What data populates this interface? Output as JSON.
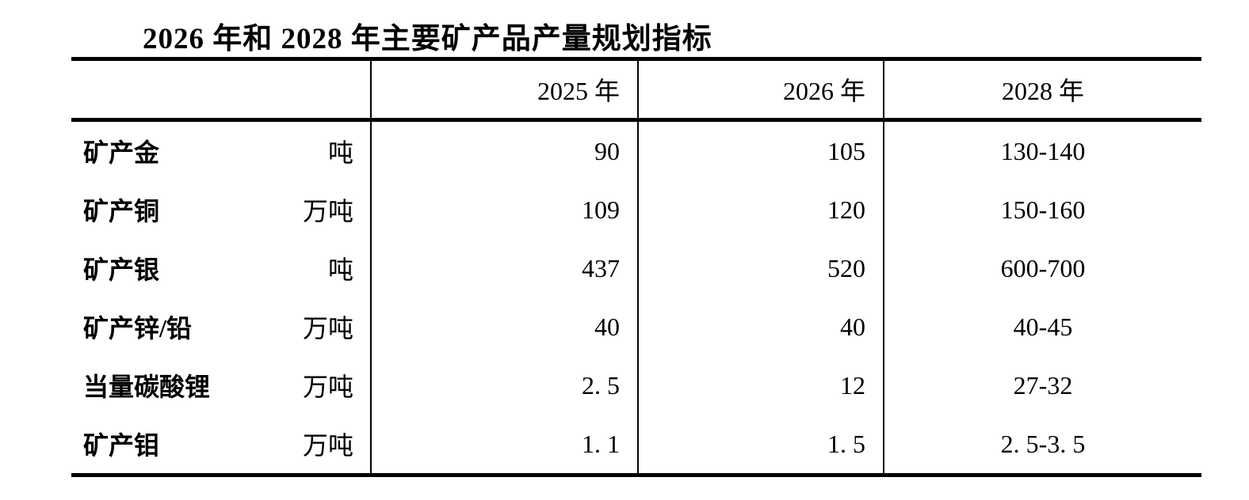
{
  "page": {
    "title": "2026 年和 2028 年主要矿产品产量规划指标"
  },
  "colors": {
    "text": "#000000",
    "background": "#ffffff",
    "border": "#000000"
  },
  "table": {
    "columns": {
      "item": "",
      "y2025": "2025 年",
      "y2026": "2026 年",
      "y2028": "2028 年"
    },
    "rows": [
      {
        "name": "矿产金",
        "unit": "吨",
        "y2025": "90",
        "y2026": "105",
        "y2028": "130-140"
      },
      {
        "name": "矿产铜",
        "unit": "万吨",
        "y2025": "109",
        "y2026": "120",
        "y2028": "150-160"
      },
      {
        "name": "矿产银",
        "unit": "吨",
        "y2025": "437",
        "y2026": "520",
        "y2028": "600-700"
      },
      {
        "name": "矿产锌/铅",
        "unit": "万吨",
        "y2025": "40",
        "y2026": "40",
        "y2028": "40-45"
      },
      {
        "name": "当量碳酸锂",
        "unit": "万吨",
        "y2025": "2. 5",
        "y2026": "12",
        "y2028": "27-32"
      },
      {
        "name": "矿产钼",
        "unit": "万吨",
        "y2025": "1. 1",
        "y2026": "1. 5",
        "y2028": "2. 5-3. 5"
      }
    ]
  }
}
